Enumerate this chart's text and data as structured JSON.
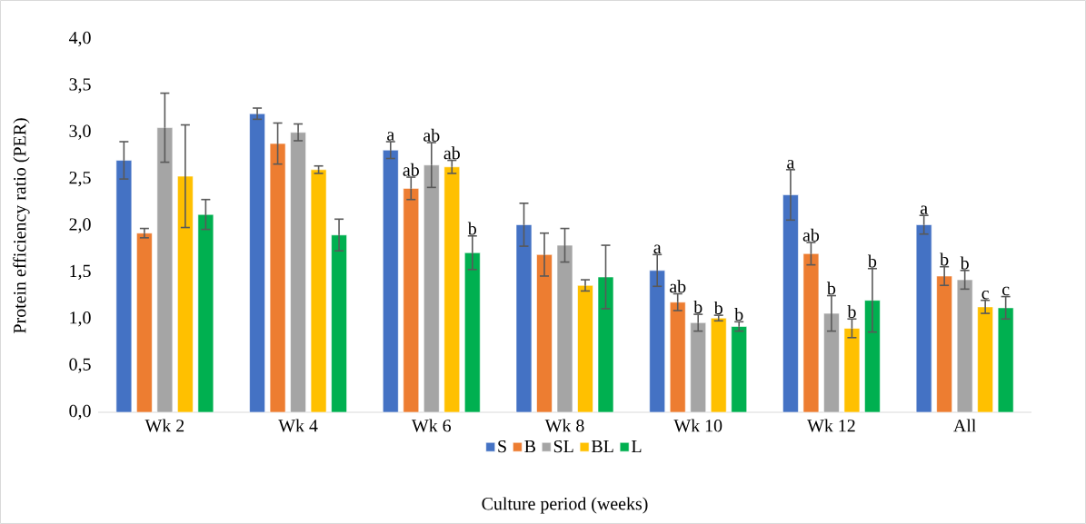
{
  "chart_data": {
    "type": "bar",
    "xlabel": "Culture period (weeks)",
    "ylabel": "Protein efficiency ratio (PER)",
    "categories": [
      "Wk 2",
      "Wk 4",
      "Wk 6",
      "Wk 8",
      "Wk 10",
      "Wk 12",
      "All"
    ],
    "ylim": [
      0,
      4
    ],
    "yticks": [
      {
        "value": 0,
        "label": "0,0"
      },
      {
        "value": 0.5,
        "label": "0,5"
      },
      {
        "value": 1,
        "label": "1,0"
      },
      {
        "value": 1.5,
        "label": "1,5"
      },
      {
        "value": 2,
        "label": "2,0"
      },
      {
        "value": 2.5,
        "label": "2,5"
      },
      {
        "value": 3,
        "label": "3,0"
      },
      {
        "value": 3.5,
        "label": "3,5"
      },
      {
        "value": 4,
        "label": "4,0"
      }
    ],
    "legend": "bottom",
    "grid": false,
    "series": [
      {
        "name": "S",
        "color": "#4472c4",
        "values": [
          2.7,
          3.2,
          2.81,
          2.01,
          1.52,
          2.33,
          2.01
        ],
        "errors": [
          0.2,
          0.06,
          0.09,
          0.23,
          0.17,
          0.27,
          0.1
        ],
        "value_labels": [
          null,
          null,
          "a",
          null,
          "a",
          "a",
          "a"
        ]
      },
      {
        "name": "B",
        "color": "#ed7d31",
        "values": [
          1.92,
          2.88,
          2.4,
          1.69,
          1.18,
          1.7,
          1.46
        ],
        "errors": [
          0.05,
          0.22,
          0.12,
          0.23,
          0.09,
          0.12,
          0.1
        ],
        "value_labels": [
          null,
          null,
          "ab",
          null,
          "ab",
          "ab",
          "b"
        ]
      },
      {
        "name": "SL",
        "color": "#a5a5a5",
        "values": [
          3.05,
          3.0,
          2.65,
          1.79,
          0.96,
          1.06,
          1.42
        ],
        "errors": [
          0.37,
          0.09,
          0.24,
          0.18,
          0.09,
          0.19,
          0.1
        ],
        "value_labels": [
          null,
          null,
          "ab",
          null,
          "b",
          "b",
          "b"
        ]
      },
      {
        "name": "BL",
        "color": "#ffc000",
        "values": [
          2.53,
          2.6,
          2.63,
          1.36,
          1.01,
          0.9,
          1.13
        ],
        "errors": [
          0.55,
          0.04,
          0.07,
          0.06,
          0.03,
          0.1,
          0.07
        ],
        "value_labels": [
          null,
          null,
          "ab",
          null,
          "b",
          "b",
          "c"
        ]
      },
      {
        "name": "L",
        "color": "#00b050",
        "values": [
          2.12,
          1.9,
          1.71,
          1.45,
          0.92,
          1.2,
          1.12
        ],
        "errors": [
          0.16,
          0.17,
          0.18,
          0.34,
          0.05,
          0.34,
          0.12
        ],
        "value_labels": [
          null,
          null,
          "b",
          null,
          "b",
          "b",
          "c"
        ]
      }
    ]
  }
}
